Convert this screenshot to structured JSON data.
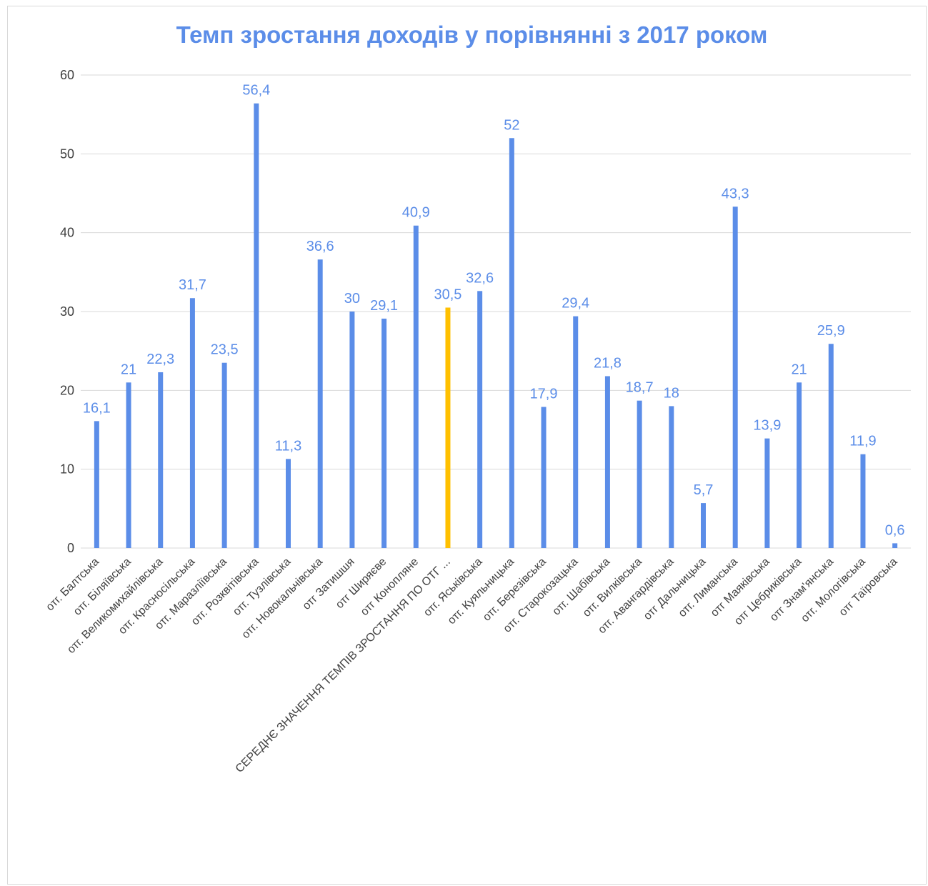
{
  "chart_data": {
    "type": "bar",
    "title": "Темп зростання доходів у порівнянні з 2017 роком",
    "xlabel": "",
    "ylabel": "",
    "ylim": [
      0,
      60
    ],
    "yticks": [
      0,
      10,
      20,
      30,
      40,
      50,
      60
    ],
    "grid": true,
    "legend": "none",
    "colors": {
      "bar": "#5b8de8",
      "highlight": "#ffc000",
      "label": "#5b8de8",
      "grid": "#d9d9d9"
    },
    "categories": [
      "отг. Балтська",
      "отг. Біляївська",
      "отг. Великомихайлівська",
      "отг. Красносільська",
      "отг. Маразліївська",
      "отг. Розквітівська",
      "отг. Тузлівська",
      "отг. Новокальчівська",
      "отг Затишшя",
      "отг Ширяєве",
      "отг Коноплянe",
      "СЕРЕДНЄ ЗНАЧЕННЯ ТЕМПІВ ЗРОСТАННЯ ПО ОТГ ...",
      "отг. Яськівська",
      "отг. Куяльницька",
      "отг. Березівська",
      "отг. Старокозацька",
      "отг. Шабівська",
      "отг. Вилківська",
      "отг. Авангардівська",
      "отг Дальницька",
      "отг. Лиманська",
      "отг Маяківська",
      "отг Цебриківська",
      "отг Знам'янська",
      "отг. Мологівська",
      "отг Таїровська"
    ],
    "values": [
      16.1,
      21,
      22.3,
      31.7,
      23.5,
      56.4,
      11.3,
      36.6,
      30,
      29.1,
      40.9,
      30.5,
      32.6,
      52,
      17.9,
      29.4,
      21.8,
      18.7,
      18,
      5.7,
      43.3,
      13.9,
      21,
      25.9,
      11.9,
      0.6
    ],
    "data_labels": [
      "16,1",
      "21",
      "22,3",
      "31,7",
      "23,5",
      "56,4",
      "11,3",
      "36,6",
      "30",
      "29,1",
      "40,9",
      "30,5",
      "32,6",
      "52",
      "17,9",
      "29,4",
      "21,8",
      "18,7",
      "18",
      "5,7",
      "43,3",
      "13,9",
      "21",
      "25,9",
      "11,9",
      "0,6"
    ],
    "highlight_index": 11
  }
}
